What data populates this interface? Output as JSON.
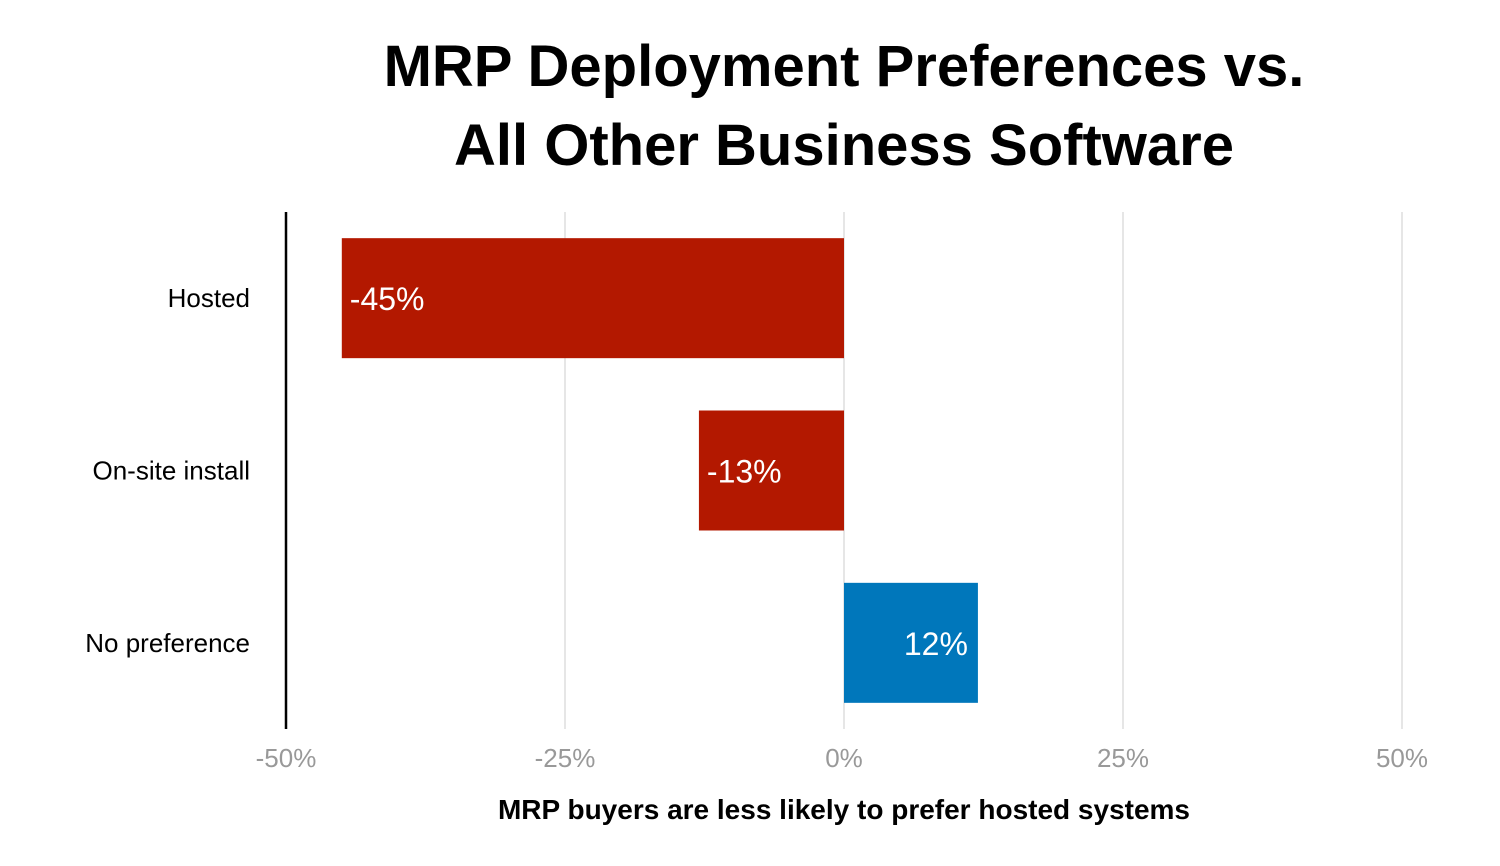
{
  "chart_data": {
    "type": "bar",
    "orientation": "horizontal",
    "title": "MRP Deployment Preferences vs. All Other Business Software",
    "title_lines": [
      "MRP Deployment Preferences vs.",
      "All Other Business Software"
    ],
    "xlabel": "MRP buyers are less likely to prefer hosted systems",
    "ylabel": "",
    "categories": [
      "Hosted",
      "On-site install",
      "No preference"
    ],
    "values": [
      -45,
      -13,
      12
    ],
    "data_labels": [
      "-45%",
      "-13%",
      "12%"
    ],
    "xlim": [
      -50,
      50
    ],
    "xticks": [
      -50,
      -25,
      0,
      25,
      50
    ],
    "xtick_labels": [
      "-50%",
      "-25%",
      "0%",
      "25%",
      "50%"
    ],
    "grid": "vertical",
    "legend": "none",
    "colors": {
      "negative": "#b31800",
      "positive": "#0077bb",
      "grid": "#dddddd",
      "tick": "#999999"
    }
  }
}
